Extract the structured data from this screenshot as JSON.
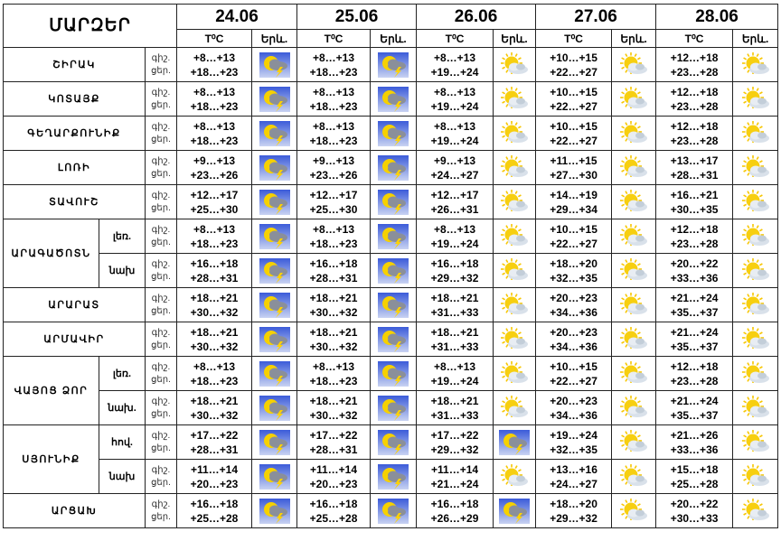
{
  "header": {
    "region_label": "ՄԱՐԶԵՐ",
    "temp_label": "T⁰C",
    "sky_label": "Երև.",
    "dates": [
      "24.06",
      "25.06",
      "26.06",
      "27.06",
      "28.06"
    ]
  },
  "colors": {
    "storm_bg_top": "#3b5bd9",
    "storm_bg_bottom": "#c9d3f2",
    "sun": "#f6d100",
    "cloud": "#8a8f9a",
    "lightning": "#ffd200"
  },
  "rows": [
    {
      "region": "ՇԻՐԱԿ",
      "sub": "",
      "night_label": "գիշ.",
      "day_label": "ցեր.",
      "days": [
        {
          "night": "+8…+13",
          "day": "+18…+23",
          "icon": "storm-icon"
        },
        {
          "night": "+8…+13",
          "day": "+18…+23",
          "icon": "storm-icon"
        },
        {
          "night": "+8…+13",
          "day": "+19…+24",
          "icon": "partly-cloudy-icon"
        },
        {
          "night": "+10…+15",
          "day": "+22…+27",
          "icon": "partly-cloudy-icon"
        },
        {
          "night": "+12…+18",
          "day": "+23…+28",
          "icon": "partly-cloudy-icon"
        }
      ]
    },
    {
      "region": "ԿՈՏԱՅՔ",
      "sub": "",
      "night_label": "գիշ.",
      "day_label": "ցեր.",
      "days": [
        {
          "night": "+8…+13",
          "day": "+18…+23",
          "icon": "storm-icon"
        },
        {
          "night": "+8…+13",
          "day": "+18…+23",
          "icon": "storm-icon"
        },
        {
          "night": "+8…+13",
          "day": "+19…+24",
          "icon": "partly-cloudy-icon"
        },
        {
          "night": "+10…+15",
          "day": "+22…+27",
          "icon": "partly-cloudy-icon"
        },
        {
          "night": "+12…+18",
          "day": "+23…+28",
          "icon": "partly-cloudy-icon"
        }
      ]
    },
    {
      "region": "ԳԵՂԱՐՔՈՒՆԻՔ",
      "sub": "",
      "night_label": "գիշ.",
      "day_label": "ցեր.",
      "days": [
        {
          "night": "+8…+13",
          "day": "+18…+23",
          "icon": "storm-icon"
        },
        {
          "night": "+8…+13",
          "day": "+18…+23",
          "icon": "storm-icon"
        },
        {
          "night": "+8…+13",
          "day": "+19…+24",
          "icon": "partly-cloudy-icon"
        },
        {
          "night": "+10…+15",
          "day": "+22…+27",
          "icon": "partly-cloudy-icon"
        },
        {
          "night": "+12…+18",
          "day": "+23…+28",
          "icon": "partly-cloudy-icon"
        }
      ]
    },
    {
      "region": "ԼՈՌԻ",
      "sub": "",
      "night_label": "գիշ.",
      "day_label": "ցեր.",
      "days": [
        {
          "night": "+9…+13",
          "day": "+23…+26",
          "icon": "storm-icon"
        },
        {
          "night": "+9…+13",
          "day": "+23…+26",
          "icon": "storm-icon"
        },
        {
          "night": "+9…+13",
          "day": "+24…+27",
          "icon": "partly-cloudy-icon"
        },
        {
          "night": "+11…+15",
          "day": "+27…+30",
          "icon": "partly-cloudy-icon"
        },
        {
          "night": "+13…+17",
          "day": "+28…+31",
          "icon": "partly-cloudy-icon"
        }
      ]
    },
    {
      "region": "ՏԱՎՈՒՇ",
      "sub": "",
      "night_label": "գիշ.",
      "day_label": "ցեր.",
      "days": [
        {
          "night": "+12…+17",
          "day": "+25…+30",
          "icon": "storm-icon"
        },
        {
          "night": "+12…+17",
          "day": "+25…+30",
          "icon": "storm-icon"
        },
        {
          "night": "+12…+17",
          "day": "+26…+31",
          "icon": "partly-cloudy-icon"
        },
        {
          "night": "+14…+19",
          "day": "+29…+34",
          "icon": "partly-cloudy-icon"
        },
        {
          "night": "+16…+21",
          "day": "+30…+35",
          "icon": "partly-cloudy-icon"
        }
      ]
    },
    {
      "region": "ԱՐԱԳԱԾՈՏՆ",
      "sub": "լեռ.",
      "night_label": "գիշ.",
      "day_label": "ցեր.",
      "days": [
        {
          "night": "+8…+13",
          "day": "+18…+23",
          "icon": "storm-icon"
        },
        {
          "night": "+8…+13",
          "day": "+18…+23",
          "icon": "storm-icon"
        },
        {
          "night": "+8…+13",
          "day": "+19…+24",
          "icon": "partly-cloudy-icon"
        },
        {
          "night": "+10…+15",
          "day": "+22…+27",
          "icon": "partly-cloudy-icon"
        },
        {
          "night": "+12…+18",
          "day": "+23…+28",
          "icon": "partly-cloudy-icon"
        }
      ]
    },
    {
      "region": "",
      "sub": "նախ",
      "night_label": "գիշ.",
      "day_label": "ցեր.",
      "days": [
        {
          "night": "+16…+18",
          "day": "+28…+31",
          "icon": "storm-icon"
        },
        {
          "night": "+16…+18",
          "day": "+28…+31",
          "icon": "storm-icon"
        },
        {
          "night": "+16…+18",
          "day": "+29…+32",
          "icon": "partly-cloudy-icon"
        },
        {
          "night": "+18…+20",
          "day": "+32…+35",
          "icon": "partly-cloudy-icon"
        },
        {
          "night": "+20…+22",
          "day": "+33…+36",
          "icon": "partly-cloudy-icon"
        }
      ]
    },
    {
      "region": "ԱՐԱՐԱՏ",
      "sub": "",
      "night_label": "գիշ.",
      "day_label": "ցեր.",
      "days": [
        {
          "night": "+18…+21",
          "day": "+30…+32",
          "icon": "storm-icon"
        },
        {
          "night": "+18…+21",
          "day": "+30…+32",
          "icon": "storm-icon"
        },
        {
          "night": "+18…+21",
          "day": "+31…+33",
          "icon": "partly-cloudy-icon"
        },
        {
          "night": "+20…+23",
          "day": "+34…+36",
          "icon": "partly-cloudy-icon"
        },
        {
          "night": "+21…+24",
          "day": "+35…+37",
          "icon": "partly-cloudy-icon"
        }
      ]
    },
    {
      "region": "ԱՐՄԱՎԻՐ",
      "sub": "",
      "night_label": "գիշ.",
      "day_label": "ցեր.",
      "days": [
        {
          "night": "+18…+21",
          "day": "+30…+32",
          "icon": "storm-icon"
        },
        {
          "night": "+18…+21",
          "day": "+30…+32",
          "icon": "storm-icon"
        },
        {
          "night": "+18…+21",
          "day": "+31…+33",
          "icon": "partly-cloudy-icon"
        },
        {
          "night": "+20…+23",
          "day": "+34…+36",
          "icon": "partly-cloudy-icon"
        },
        {
          "night": "+21…+24",
          "day": "+35…+37",
          "icon": "partly-cloudy-icon"
        }
      ]
    },
    {
      "region": "ՎԱՅՈՑ ՁՈՐ",
      "sub": "լեռ.",
      "night_label": "գիշ.",
      "day_label": "ցեր.",
      "days": [
        {
          "night": "+8…+13",
          "day": "+18…+23",
          "icon": "storm-icon"
        },
        {
          "night": "+8…+13",
          "day": "+18…+23",
          "icon": "storm-icon"
        },
        {
          "night": "+8…+13",
          "day": "+19…+24",
          "icon": "partly-cloudy-icon"
        },
        {
          "night": "+10…+15",
          "day": "+22…+27",
          "icon": "partly-cloudy-icon"
        },
        {
          "night": "+12…+18",
          "day": "+23…+28",
          "icon": "partly-cloudy-icon"
        }
      ]
    },
    {
      "region": "",
      "sub": "նախ.",
      "night_label": "գիշ.",
      "day_label": "ցեր.",
      "days": [
        {
          "night": "+18…+21",
          "day": "+30…+32",
          "icon": "storm-icon"
        },
        {
          "night": "+18…+21",
          "day": "+30…+32",
          "icon": "storm-icon"
        },
        {
          "night": "+18…+21",
          "day": "+31…+33",
          "icon": "partly-cloudy-icon"
        },
        {
          "night": "+20…+23",
          "day": "+34…+36",
          "icon": "partly-cloudy-icon"
        },
        {
          "night": "+21…+24",
          "day": "+35…+37",
          "icon": "partly-cloudy-icon"
        }
      ]
    },
    {
      "region": "ՍՅՈՒՆԻՔ",
      "sub": "հով.",
      "night_label": "գիշ.",
      "day_label": "ցեր.",
      "days": [
        {
          "night": "+17…+22",
          "day": "+28…+31",
          "icon": "storm-icon"
        },
        {
          "night": "+17…+22",
          "day": "+28…+31",
          "icon": "storm-icon"
        },
        {
          "night": "+17…+22",
          "day": "+29…+32",
          "icon": "storm-icon"
        },
        {
          "night": "+19…+24",
          "day": "+32…+35",
          "icon": "partly-cloudy-icon"
        },
        {
          "night": "+21…+26",
          "day": "+33…+36",
          "icon": "partly-cloudy-icon"
        }
      ]
    },
    {
      "region": "",
      "sub": "նախ",
      "night_label": "գիշ.",
      "day_label": "ցեր.",
      "days": [
        {
          "night": "+11…+14",
          "day": "+20…+23",
          "icon": "storm-icon"
        },
        {
          "night": "+11…+14",
          "day": "+20…+23",
          "icon": "storm-icon"
        },
        {
          "night": "+11…+14",
          "day": "+21…+24",
          "icon": "partly-cloudy-icon"
        },
        {
          "night": "+13…+16",
          "day": "+24…+27",
          "icon": "partly-cloudy-icon"
        },
        {
          "night": "+15…+18",
          "day": "+25…+28",
          "icon": "partly-cloudy-icon"
        }
      ]
    },
    {
      "region": "ԱՐՑԱԽ",
      "sub": "",
      "night_label": "գիշ.",
      "day_label": "ցեր.",
      "days": [
        {
          "night": "+16…+18",
          "day": "+25…+28",
          "icon": "storm-icon"
        },
        {
          "night": "+16…+18",
          "day": "+25…+28",
          "icon": "storm-icon"
        },
        {
          "night": "+16…+18",
          "day": "+26…+29",
          "icon": "storm-icon"
        },
        {
          "night": "+18…+20",
          "day": "+29…+32",
          "icon": "partly-cloudy-icon"
        },
        {
          "night": "+20…+22",
          "day": "+30…+33",
          "icon": "partly-cloudy-icon"
        }
      ]
    }
  ]
}
